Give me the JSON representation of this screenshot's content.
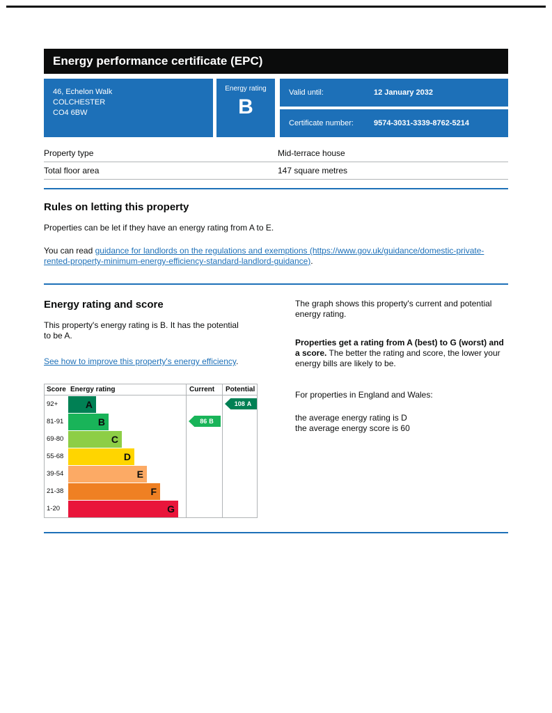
{
  "header": {
    "title": "Energy performance certificate (EPC)"
  },
  "summary": {
    "address_lines": [
      "46, Echelon Walk",
      "COLCHESTER",
      "CO4 6BW"
    ],
    "energy_rating_label": "Energy rating",
    "energy_rating_letter": "B",
    "valid_until_label": "Valid until:",
    "valid_until_value": "12 January 2032",
    "certificate_number_label": "Certificate number:",
    "certificate_number_value": "9574-3031-3339-8762-5214"
  },
  "property_details": {
    "rows": [
      {
        "label": "Property type",
        "value": "Mid-terrace house"
      },
      {
        "label": "Total floor area",
        "value": "147 square metres"
      }
    ]
  },
  "rules_section": {
    "heading": "Rules on letting this property",
    "paragraph1": "Properties can be let if they have an energy rating from A to E.",
    "paragraph2_prefix": "You can read ",
    "guidance_link_text": "guidance for landlords on the regulations and exemptions (https://www.gov.uk/guidance/domestic-private-rented-property-minimum-energy-efficiency-standard-landlord-guidance)",
    "paragraph2_suffix": "."
  },
  "rating_section": {
    "heading": "Energy rating and score",
    "summary_text": "This property's energy rating is B. It has the potential to be A.",
    "improve_link_text": "See how to improve this property's energy efficiency",
    "improve_link_suffix": ".",
    "graph_intro": "The graph shows this property's current and potential energy rating.",
    "ratings_bold": "Properties get a rating from A (best) to G (worst) and a score.",
    "ratings_rest": " The better the rating and score, the lower your energy bills are likely to be.",
    "region_line": "For properties in England and Wales:",
    "average_rating_line": "the average energy rating is D",
    "average_score_line": "the average energy score is 60"
  },
  "chart": {
    "type": "bar",
    "title": "Energy rating and score",
    "headers": {
      "score": "Score",
      "rating": "Energy rating",
      "current": "Current",
      "potential": "Potential"
    },
    "bands": [
      {
        "score": "92+",
        "letter": "A",
        "color": "#008054"
      },
      {
        "score": "81-91",
        "letter": "B",
        "color": "#19b459"
      },
      {
        "score": "69-80",
        "letter": "C",
        "color": "#8dce46"
      },
      {
        "score": "55-68",
        "letter": "D",
        "color": "#ffd500"
      },
      {
        "score": "39-54",
        "letter": "E",
        "color": "#fcaa65"
      },
      {
        "score": "21-38",
        "letter": "F",
        "color": "#ef8023"
      },
      {
        "score": "1-20",
        "letter": "G",
        "color": "#e9153b"
      }
    ],
    "current": {
      "score": "86",
      "letter": "B",
      "color": "#19b459"
    },
    "potential": {
      "score": "108",
      "letter": "A",
      "color": "#008054"
    }
  },
  "colors": {
    "brand_blue": "#1d70b8",
    "text_black": "#0b0c0c",
    "divider_blue": "#1d70b8",
    "border_grey": "#b1b4b6"
  }
}
